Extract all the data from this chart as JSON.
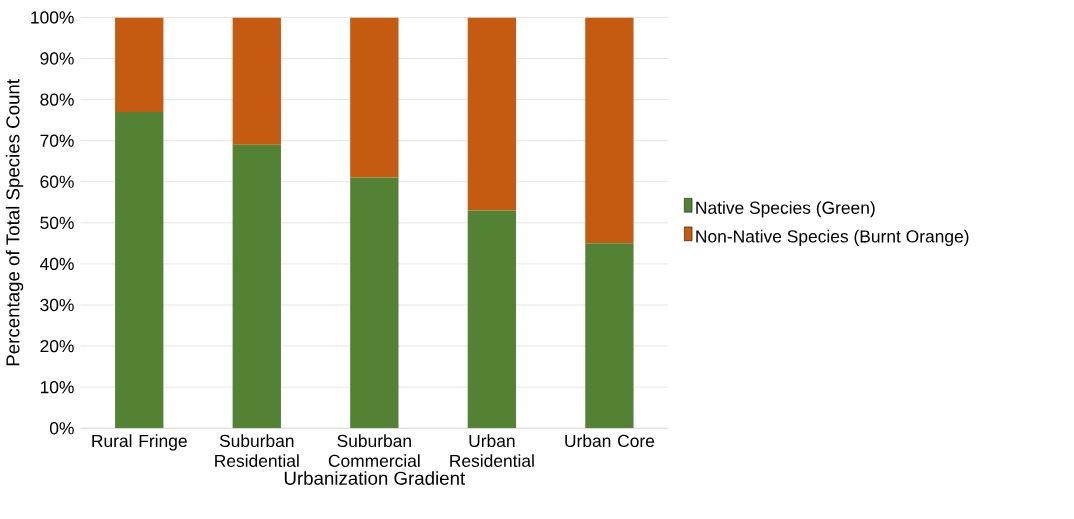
{
  "chart_data": {
    "type": "bar",
    "stacked": true,
    "xlabel": "Urbanization Gradient",
    "ylabel": "Percentage of Total Species Count",
    "categories": [
      "Rural Fringe",
      "Suburban Residential",
      "Suburban Commercial",
      "Urban Residential",
      "Urban Core"
    ],
    "series": [
      {
        "name": "Native Species (Green)",
        "color": "#548235",
        "values": [
          77,
          69,
          61,
          53,
          45
        ]
      },
      {
        "name": "Non-Native Species (Burnt Orange)",
        "color": "#c55a11",
        "values": [
          23,
          31,
          39,
          47,
          55
        ]
      }
    ],
    "ylim": [
      0,
      100
    ],
    "yticks": [
      {
        "value": 0,
        "label": "0%"
      },
      {
        "value": 10,
        "label": "10%"
      },
      {
        "value": 20,
        "label": "20%"
      },
      {
        "value": 30,
        "label": "30%"
      },
      {
        "value": 40,
        "label": "40%"
      },
      {
        "value": 50,
        "label": "50%"
      },
      {
        "value": 60,
        "label": "60%"
      },
      {
        "value": 70,
        "label": "70%"
      },
      {
        "value": 80,
        "label": "80%"
      },
      {
        "value": 90,
        "label": "90%"
      },
      {
        "value": 100,
        "label": "100%"
      }
    ],
    "grid": "y",
    "legend": "right"
  }
}
